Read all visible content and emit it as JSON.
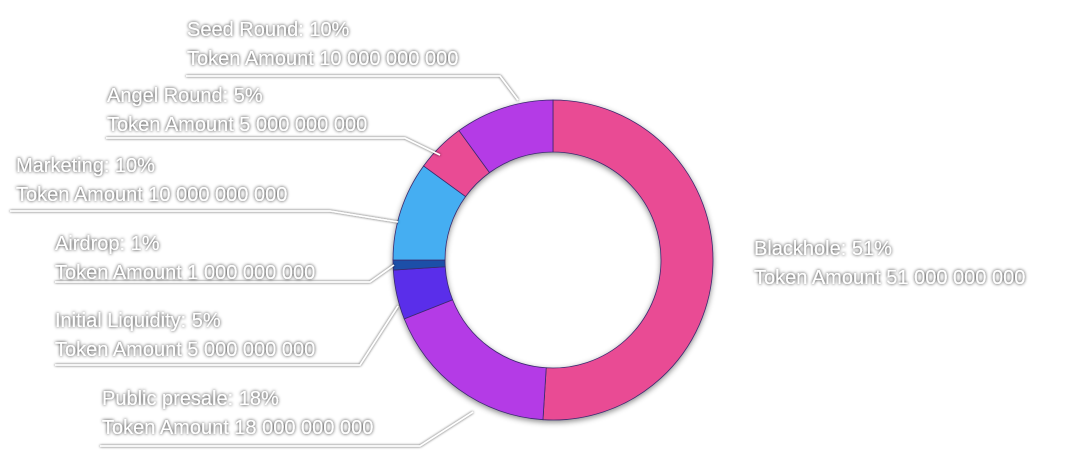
{
  "chart_data": {
    "type": "pie",
    "donut": true,
    "slices": [
      {
        "name": "Blackhole",
        "percent": 51,
        "amount": "51 000 000 000",
        "color": "#e94c94",
        "label_line1": "Blackhole: 51%",
        "label_line2": "Token Amount 51 000 000 000"
      },
      {
        "name": "Public presale",
        "percent": 18,
        "amount": "18 000 000 000",
        "color": "#b43be6",
        "label_line1": "Public presale: 18%",
        "label_line2": "Token Amount 18 000 000 000"
      },
      {
        "name": "Initial Liquidity",
        "percent": 5,
        "amount": "5 000 000 000",
        "color": "#5a2eea",
        "label_line1": "Initial Liquidity: 5%",
        "label_line2": "Token Amount 5 000 000 000"
      },
      {
        "name": "Airdrop",
        "percent": 1,
        "amount": "1 000 000 000",
        "color": "#1f4fa8",
        "label_line1": "Airdrop: 1%",
        "label_line2": "Token Amount 1 000 000 000"
      },
      {
        "name": "Marketing",
        "percent": 10,
        "amount": "10 000 000 000",
        "color": "#45aef2",
        "label_line1": "Marketing: 10%",
        "label_line2": "Token Amount 10 000 000 000"
      },
      {
        "name": "Angel Round",
        "percent": 5,
        "amount": "5 000 000 000",
        "color": "#e94c94",
        "label_line1": "Angel  Round: 5%",
        "label_line2": "Token Amount 5 000 000 000"
      },
      {
        "name": "Seed Round",
        "percent": 10,
        "amount": "10 000 000 000",
        "color": "#b43be6",
        "label_line1": "Seed  Round: 10%",
        "label_line2": "Token Amount 10 000 000 000"
      }
    ]
  }
}
